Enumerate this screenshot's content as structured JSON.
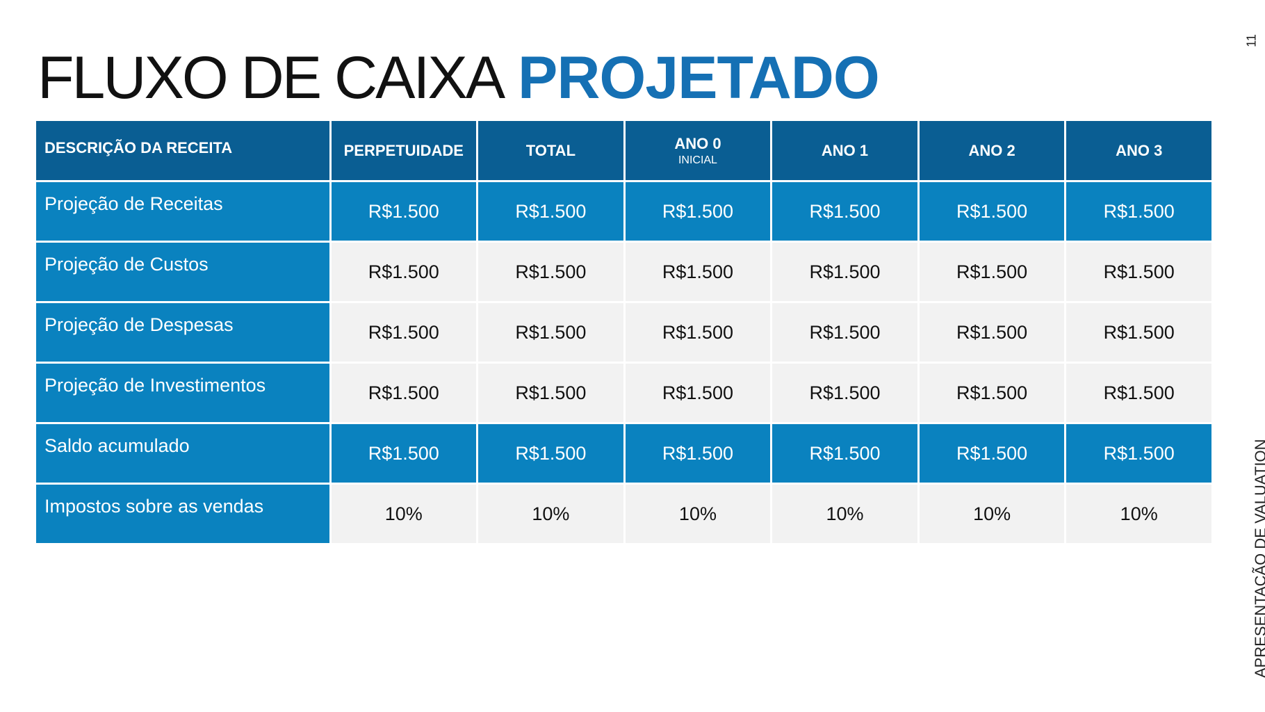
{
  "header": {
    "title_light": "FLUXO DE CAIXA",
    "title_bold": "PROJETADO"
  },
  "page_number": "11",
  "side_label": "APRESENTAÇÃO DE VALUATION",
  "table": {
    "columns": [
      {
        "label": "DESCRIÇÃO DA RECEITA"
      },
      {
        "label": "PERPETUIDADE"
      },
      {
        "label": "TOTAL"
      },
      {
        "label": "ANO 0",
        "sublabel": "INICIAL"
      },
      {
        "label": "ANO 1"
      },
      {
        "label": "ANO 2"
      },
      {
        "label": "ANO 3"
      }
    ],
    "rows": [
      {
        "label": "Projeção de Receitas",
        "cells": [
          "R$1.500",
          "R$1.500",
          "R$1.500",
          "R$1.500",
          "R$1.500",
          "R$1.500"
        ]
      },
      {
        "label": "Projeção de Custos",
        "cells": [
          "R$1.500",
          "R$1.500",
          "R$1.500",
          "R$1.500",
          "R$1.500",
          "R$1.500"
        ]
      },
      {
        "label": "Projeção de Despesas",
        "cells": [
          "R$1.500",
          "R$1.500",
          "R$1.500",
          "R$1.500",
          "R$1.500",
          "R$1.500"
        ]
      },
      {
        "label": "Projeção de Investimentos",
        "cells": [
          "R$1.500",
          "R$1.500",
          "R$1.500",
          "R$1.500",
          "R$1.500",
          "R$1.500"
        ]
      },
      {
        "label": "Saldo acumulado",
        "cells": [
          "R$1.500",
          "R$1.500",
          "R$1.500",
          "R$1.500",
          "R$1.500",
          "R$1.500"
        ]
      },
      {
        "label": "Impostos sobre as vendas",
        "cells": [
          "10%",
          "10%",
          "10%",
          "10%",
          "10%",
          "10%"
        ]
      }
    ]
  }
}
